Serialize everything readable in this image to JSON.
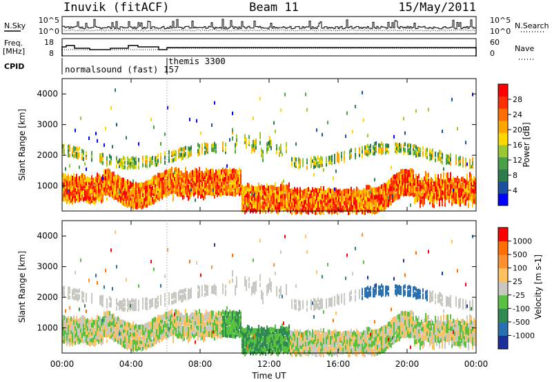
{
  "header": {
    "station": "Inuvik (fitACF)",
    "beam": "Beam 11",
    "date": "15/May/2011"
  },
  "panels": {
    "nsky_label": "N.Sky",
    "nsearch_label": "N.Search",
    "freq_label_1": "Freq.",
    "freq_label_2": "[MHz]",
    "nave_label": "Nave",
    "cpid_label": "CPID",
    "nsky_ticks": [
      "10^5",
      "10^0"
    ],
    "nsearch_ticks": [
      "10^5",
      "10^0"
    ],
    "freq_ticks": [
      "18",
      "8"
    ],
    "nave_ticks": [
      "60",
      "0"
    ],
    "cpid_names": [
      "normalsound (fast) 157",
      "themis 3300"
    ]
  },
  "chart_data": [
    {
      "type": "heatmap",
      "name": "power",
      "ylabel": "Slant Range [km]",
      "yticks": [
        "1000",
        "2000",
        "3000",
        "4000"
      ],
      "ylim": [
        180,
        4500
      ],
      "colorbar_label": "Power [dB]",
      "colorbar_ticks": [
        "4",
        "8",
        "12",
        "16",
        "20",
        "24",
        "28"
      ],
      "colors": [
        "#0000ff",
        "#1a4fa0",
        "#2d7d4c",
        "#4aa04a",
        "#9ac832",
        "#ffd700",
        "#ffa500",
        "#ff7000",
        "#ff3000",
        "#ff0000"
      ]
    },
    {
      "type": "heatmap",
      "name": "velocity",
      "ylabel": "Slant Range [km]",
      "yticks": [
        "1000",
        "2000",
        "3000",
        "4000"
      ],
      "ylim": [
        180,
        4500
      ],
      "colorbar_label": "Velocity [m s-1]",
      "colorbar_ticks": [
        "1000",
        "500",
        "100",
        "25",
        "-25",
        "-100",
        "-500",
        "-1000"
      ],
      "colors": [
        "#1a2f9a",
        "#2a6fb0",
        "#2e8a50",
        "#5ac040",
        "#c8c8c0",
        "#ffc060",
        "#ff9030",
        "#ff7000",
        "#ff0000"
      ]
    }
  ],
  "xaxis": {
    "label": "Time UT",
    "ticks": [
      "00:00",
      "04:00",
      "08:00",
      "12:00",
      "16:00",
      "20:00",
      "00:00"
    ]
  }
}
